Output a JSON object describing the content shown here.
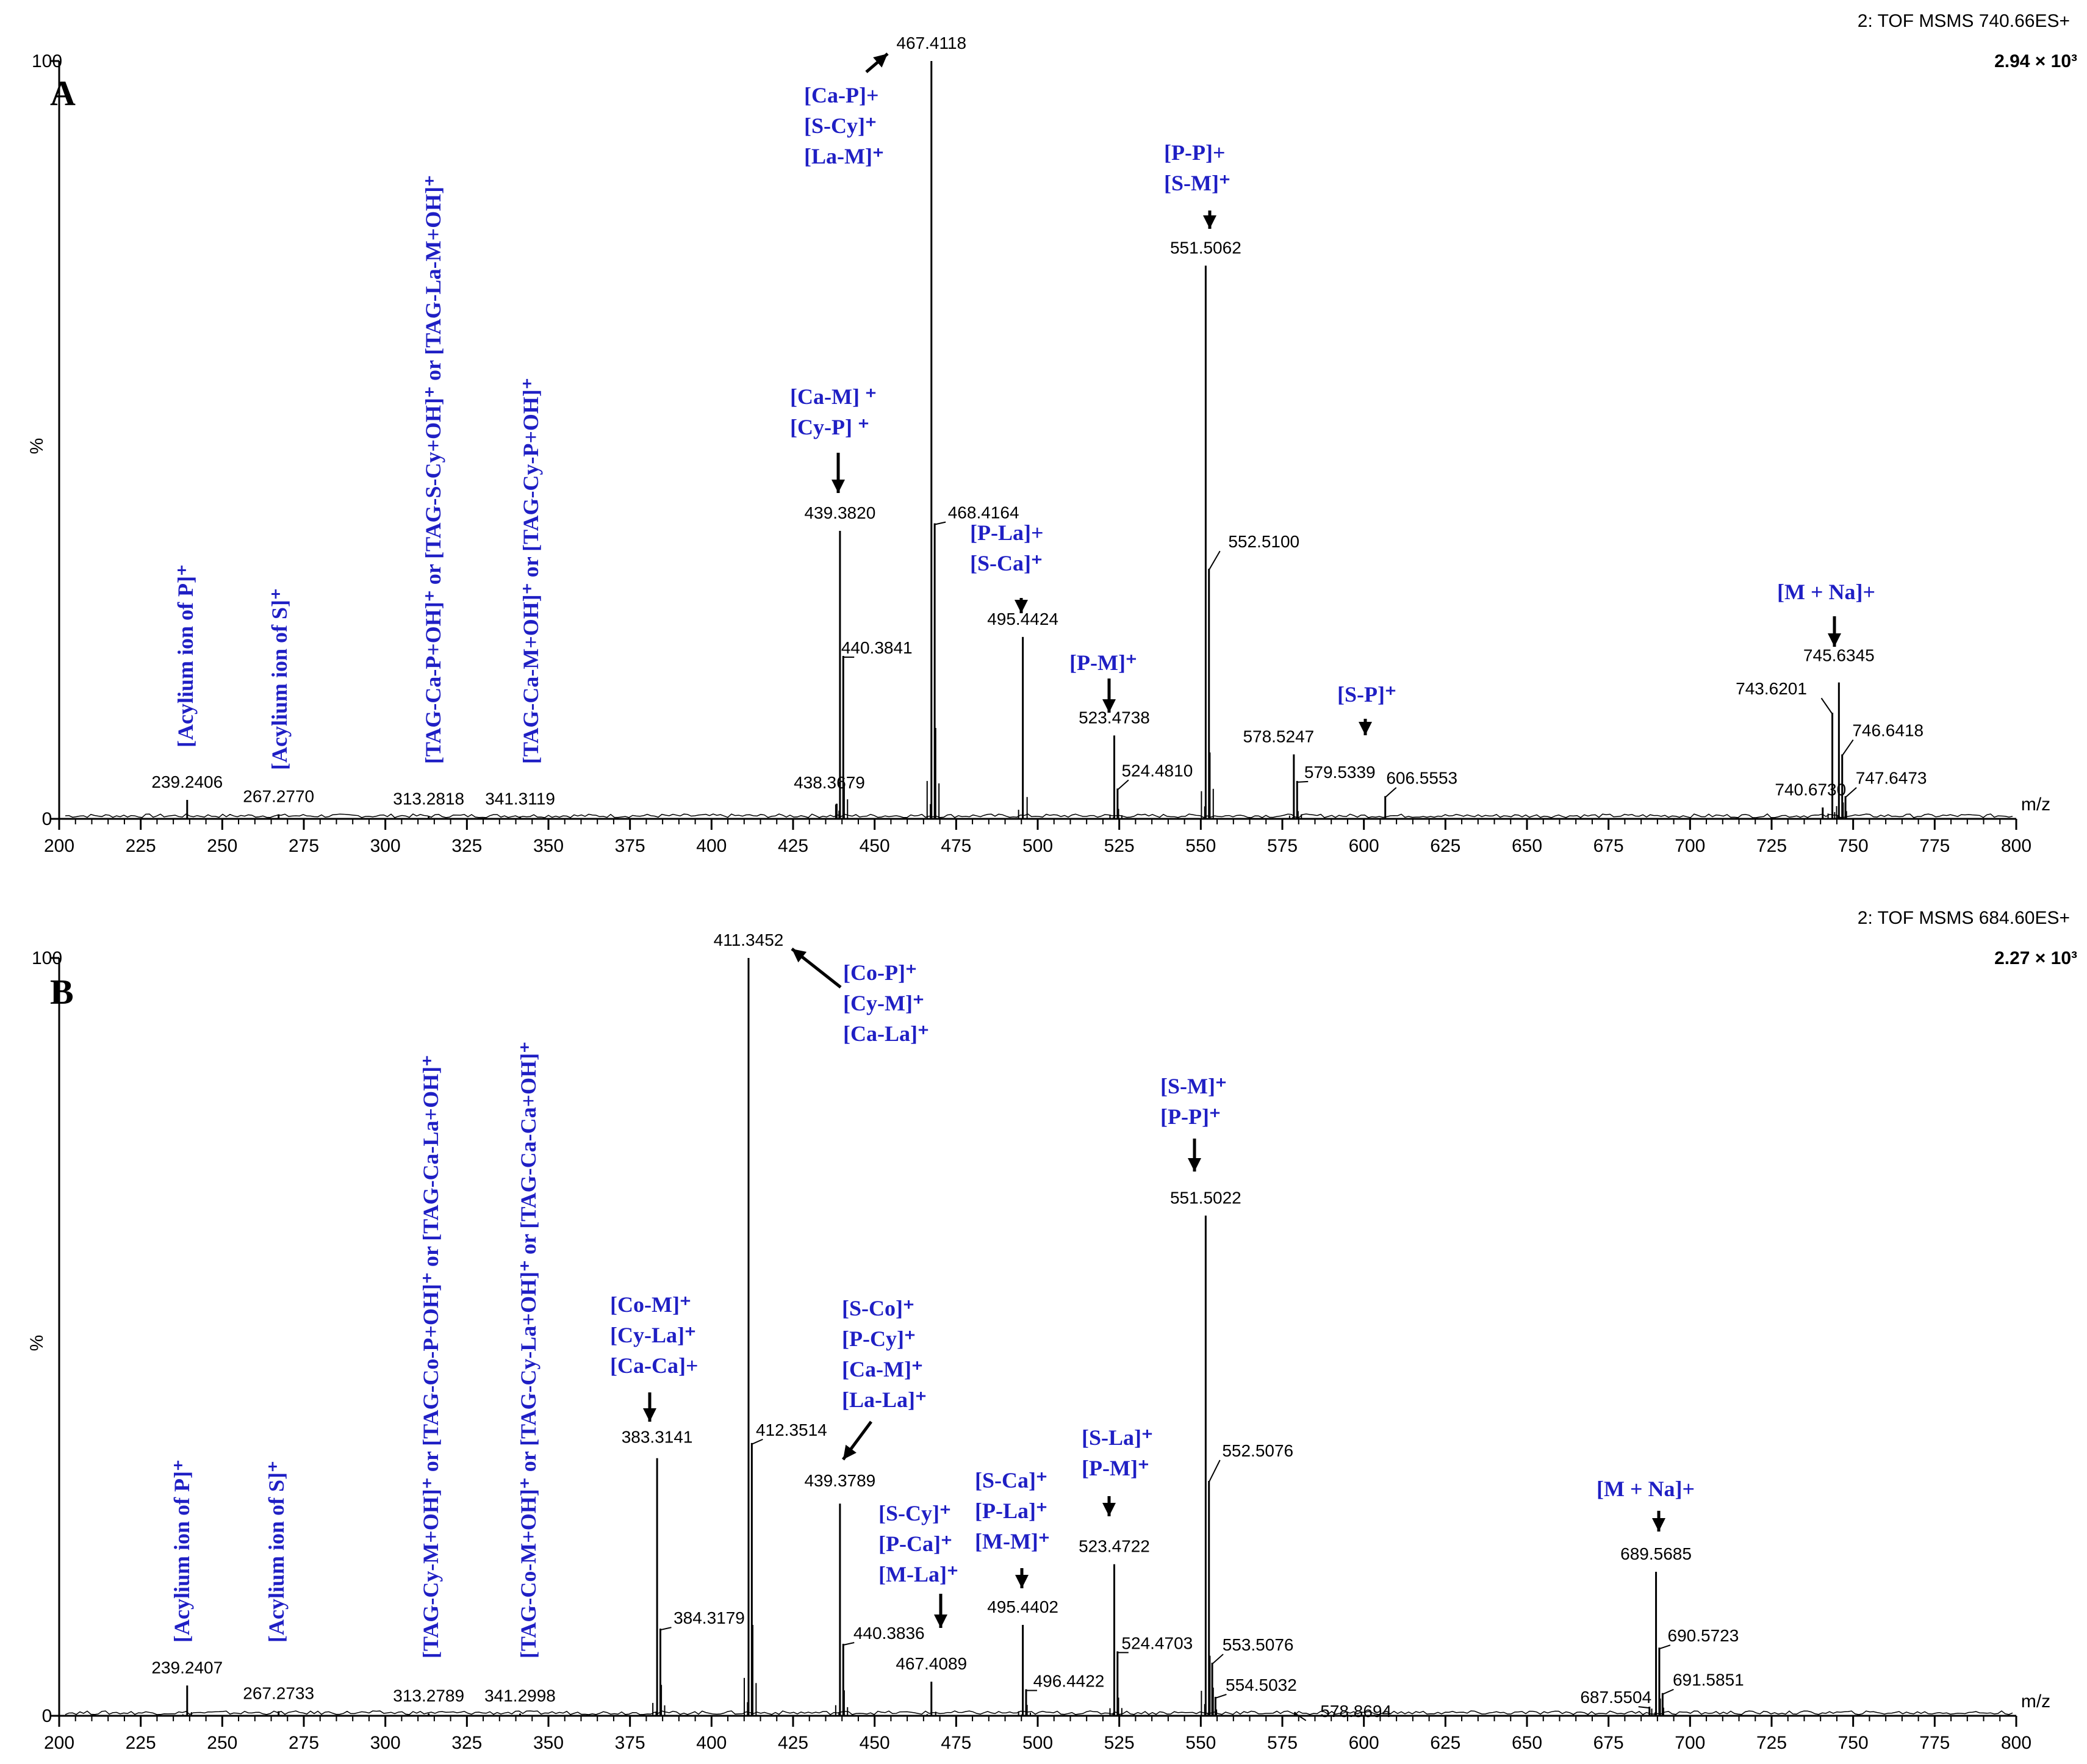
{
  "chart_data": [
    {
      "type": "line",
      "panel": "A",
      "header": "2: TOF MSMS 740.66ES+",
      "intensity": "2.94 × 10³",
      "xlabel": "m/z",
      "ylabel": "%",
      "xlim": [
        200,
        800
      ],
      "ylim": [
        0,
        100
      ],
      "xticks": [
        200,
        225,
        250,
        275,
        300,
        325,
        350,
        375,
        400,
        425,
        450,
        475,
        500,
        525,
        550,
        575,
        600,
        625,
        650,
        675,
        700,
        725,
        750,
        775,
        800
      ],
      "yticks": [
        0,
        100
      ],
      "peaks": [
        {
          "mz": 239.2406,
          "rel": 2.5,
          "label": "239.2406"
        },
        {
          "mz": 267.277,
          "rel": 0.6,
          "label": "267.2770"
        },
        {
          "mz": 313.2818,
          "rel": 0.3,
          "label": "313.2818"
        },
        {
          "mz": 341.3119,
          "rel": 0.3,
          "label": "341.3119"
        },
        {
          "mz": 438.3679,
          "rel": 2.0,
          "label": "438.3679"
        },
        {
          "mz": 439.382,
          "rel": 38,
          "label": "439.3820"
        },
        {
          "mz": 440.3841,
          "rel": 21.5,
          "label": "440.3841"
        },
        {
          "mz": 467.4118,
          "rel": 100,
          "label": "467.4118"
        },
        {
          "mz": 468.4164,
          "rel": 39,
          "label": "468.4164"
        },
        {
          "mz": 495.4424,
          "rel": 24,
          "label": "495.4424"
        },
        {
          "mz": 523.4738,
          "rel": 11,
          "label": "523.4738"
        },
        {
          "mz": 524.481,
          "rel": 4,
          "label": "524.4810"
        },
        {
          "mz": 551.5062,
          "rel": 73,
          "label": "551.5062"
        },
        {
          "mz": 552.51,
          "rel": 33,
          "label": "552.5100"
        },
        {
          "mz": 578.5247,
          "rel": 8.5,
          "label": "578.5247"
        },
        {
          "mz": 579.5339,
          "rel": 5,
          "label": "579.5339"
        },
        {
          "mz": 606.5553,
          "rel": 3,
          "label": "606.5553"
        },
        {
          "mz": 740.673,
          "rel": 1.5,
          "label": "740.6730"
        },
        {
          "mz": 743.6201,
          "rel": 14,
          "label": "743.6201"
        },
        {
          "mz": 745.6345,
          "rel": 18,
          "label": "745.6345"
        },
        {
          "mz": 746.6418,
          "rel": 8.5,
          "label": "746.6418"
        },
        {
          "mz": 747.6473,
          "rel": 3,
          "label": "747.6473"
        }
      ],
      "annotations": [
        {
          "lines": [
            "[Ca-P]+",
            "[S-Cy]⁺",
            "[La-M]⁺"
          ]
        },
        {
          "lines": [
            "[P-P]+",
            "[S-M]⁺"
          ]
        },
        {
          "lines": [
            "[Ca-M] ⁺",
            "[Cy-P] ⁺"
          ]
        },
        {
          "lines": [
            "[P-La]+",
            "[S-Ca]⁺"
          ]
        },
        {
          "lines": [
            "[P-M]⁺"
          ]
        },
        {
          "lines": [
            "[S-P]⁺"
          ]
        },
        {
          "lines": [
            "[M + Na]+"
          ]
        }
      ],
      "vertical_annotations": [
        "[Acylium ion of P]⁺",
        "[Acylium ion of S]⁺",
        "[TAG-Ca-P+OH]⁺ or [TAG-S-Cy+OH]⁺ or [TAG-La-M+OH]⁺",
        "[TAG-Ca-M+OH]⁺ or [TAG-Cy-P+OH]⁺"
      ]
    },
    {
      "type": "line",
      "panel": "B",
      "header": "2: TOF MSMS 684.60ES+",
      "intensity": "2.27 × 10³",
      "xlabel": "m/z",
      "ylabel": "%",
      "xlim": [
        200,
        800
      ],
      "ylim": [
        0,
        100
      ],
      "xticks": [
        200,
        225,
        250,
        275,
        300,
        325,
        350,
        375,
        400,
        425,
        450,
        475,
        500,
        525,
        550,
        575,
        600,
        625,
        650,
        675,
        700,
        725,
        750,
        775,
        800
      ],
      "yticks": [
        0,
        100
      ],
      "peaks": [
        {
          "mz": 239.2407,
          "rel": 4,
          "label": "239.2407"
        },
        {
          "mz": 267.2733,
          "rel": 0.6,
          "label": "267.2733"
        },
        {
          "mz": 313.2789,
          "rel": 0.3,
          "label": "313.2789"
        },
        {
          "mz": 341.2998,
          "rel": 0.3,
          "label": "341.2998"
        },
        {
          "mz": 383.3141,
          "rel": 34,
          "label": "383.3141"
        },
        {
          "mz": 384.3179,
          "rel": 11.5,
          "label": "384.3179"
        },
        {
          "mz": 411.3452,
          "rel": 100,
          "label": "411.3452"
        },
        {
          "mz": 412.3514,
          "rel": 36,
          "label": "412.3514"
        },
        {
          "mz": 439.3789,
          "rel": 28,
          "label": "439.3789"
        },
        {
          "mz": 440.3836,
          "rel": 9.5,
          "label": "440.3836"
        },
        {
          "mz": 467.4089,
          "rel": 4.5,
          "label": "467.4089"
        },
        {
          "mz": 495.4402,
          "rel": 12,
          "label": "495.4402"
        },
        {
          "mz": 496.4422,
          "rel": 3.5,
          "label": "496.4422"
        },
        {
          "mz": 523.4722,
          "rel": 20,
          "label": "523.4722"
        },
        {
          "mz": 524.4703,
          "rel": 8.5,
          "label": "524.4703"
        },
        {
          "mz": 551.5022,
          "rel": 66,
          "label": "551.5022"
        },
        {
          "mz": 552.5076,
          "rel": 31,
          "label": "552.5076"
        },
        {
          "mz": 553.5076,
          "rel": 7,
          "label": "553.5076"
        },
        {
          "mz": 554.5032,
          "rel": 2.5,
          "label": "554.5032"
        },
        {
          "mz": 578.8694,
          "rel": 0.5,
          "label": "578.8694"
        },
        {
          "mz": 687.5504,
          "rel": 1.2,
          "label": "687.5504"
        },
        {
          "mz": 689.5685,
          "rel": 19,
          "label": "689.5685"
        },
        {
          "mz": 690.5723,
          "rel": 9,
          "label": "690.5723"
        },
        {
          "mz": 691.5851,
          "rel": 3,
          "label": "691.5851"
        }
      ],
      "annotations": [
        {
          "lines": [
            "[Co-P]⁺",
            "[Cy-M]⁺",
            "[Ca-La]⁺"
          ]
        },
        {
          "lines": [
            "[S-M]⁺",
            "[P-P]⁺"
          ]
        },
        {
          "lines": [
            "[Co-M]⁺",
            "[Cy-La]⁺",
            "[Ca-Ca]+"
          ]
        },
        {
          "lines": [
            "[S-Co]⁺",
            "[P-Cy]⁺",
            "[Ca-M]⁺",
            "[La-La]⁺"
          ]
        },
        {
          "lines": [
            "[S-Cy]⁺",
            "[P-Ca]⁺",
            "[M-La]⁺"
          ]
        },
        {
          "lines": [
            "[S-Ca]⁺",
            "[P-La]⁺",
            "[M-M]⁺"
          ]
        },
        {
          "lines": [
            "[S-La]⁺",
            "[P-M]⁺"
          ]
        },
        {
          "lines": [
            "[M + Na]+"
          ]
        }
      ],
      "vertical_annotations": [
        "[Acylium ion of P]⁺",
        "[Acylium ion of S]⁺",
        "[TAG-Cy-M+OH]⁺ or [TAG-Co-P+OH]⁺ or [TAG-Ca-La+OH]⁺",
        "[TAG-Co-M+OH]⁺ or [TAG-Cy-La+OH]⁺ or [TAG-Ca-Ca+OH]⁺"
      ]
    }
  ]
}
